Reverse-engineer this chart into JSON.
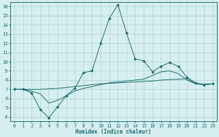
{
  "bg_color": "#d6eef0",
  "grid_color": "#b0cfd2",
  "line_color": "#1a6b6b",
  "xlabel": "Humidex (Indice chaleur)",
  "xlim": [
    -0.5,
    23.5
  ],
  "ylim": [
    3.5,
    16.5
  ],
  "xticks": [
    0,
    1,
    2,
    3,
    4,
    5,
    6,
    7,
    8,
    9,
    10,
    11,
    12,
    13,
    14,
    15,
    16,
    17,
    18,
    19,
    20,
    21,
    22,
    23
  ],
  "yticks": [
    4,
    5,
    6,
    7,
    8,
    9,
    10,
    11,
    12,
    13,
    14,
    15,
    16
  ],
  "line1_x": [
    0,
    1,
    2,
    3,
    4,
    5,
    6,
    7,
    8,
    9,
    10,
    11,
    12,
    13,
    14,
    15,
    16,
    17,
    18,
    19,
    20,
    21,
    22,
    23
  ],
  "line1_y": [
    7.0,
    7.0,
    6.6,
    4.8,
    3.9,
    5.1,
    6.3,
    7.1,
    8.8,
    9.0,
    12.0,
    14.7,
    16.2,
    13.1,
    10.3,
    10.1,
    8.9,
    9.5,
    9.9,
    9.5,
    8.3,
    7.7,
    7.5,
    7.6
  ],
  "line2_x": [
    0,
    1,
    2,
    3,
    4,
    5,
    6,
    7,
    8,
    9,
    10,
    11,
    12,
    13,
    14,
    15,
    16,
    17,
    18,
    19,
    20,
    21,
    22,
    23
  ],
  "line2_y": [
    7.0,
    7.0,
    7.0,
    7.0,
    7.05,
    7.1,
    7.2,
    7.3,
    7.4,
    7.5,
    7.6,
    7.65,
    7.7,
    7.75,
    7.8,
    7.85,
    7.9,
    8.0,
    8.05,
    8.1,
    8.15,
    7.65,
    7.55,
    7.6
  ],
  "line3_x": [
    0,
    1,
    2,
    3,
    4,
    5,
    6,
    7,
    8,
    9,
    10,
    11,
    12,
    13,
    14,
    15,
    16,
    17,
    18,
    19,
    20,
    21,
    22,
    23
  ],
  "line3_y": [
    7.0,
    7.0,
    6.8,
    6.5,
    5.5,
    5.8,
    6.3,
    6.8,
    7.1,
    7.3,
    7.5,
    7.7,
    7.8,
    7.9,
    8.0,
    8.1,
    8.5,
    8.9,
    9.0,
    8.7,
    8.0,
    7.6,
    7.5,
    7.6
  ]
}
